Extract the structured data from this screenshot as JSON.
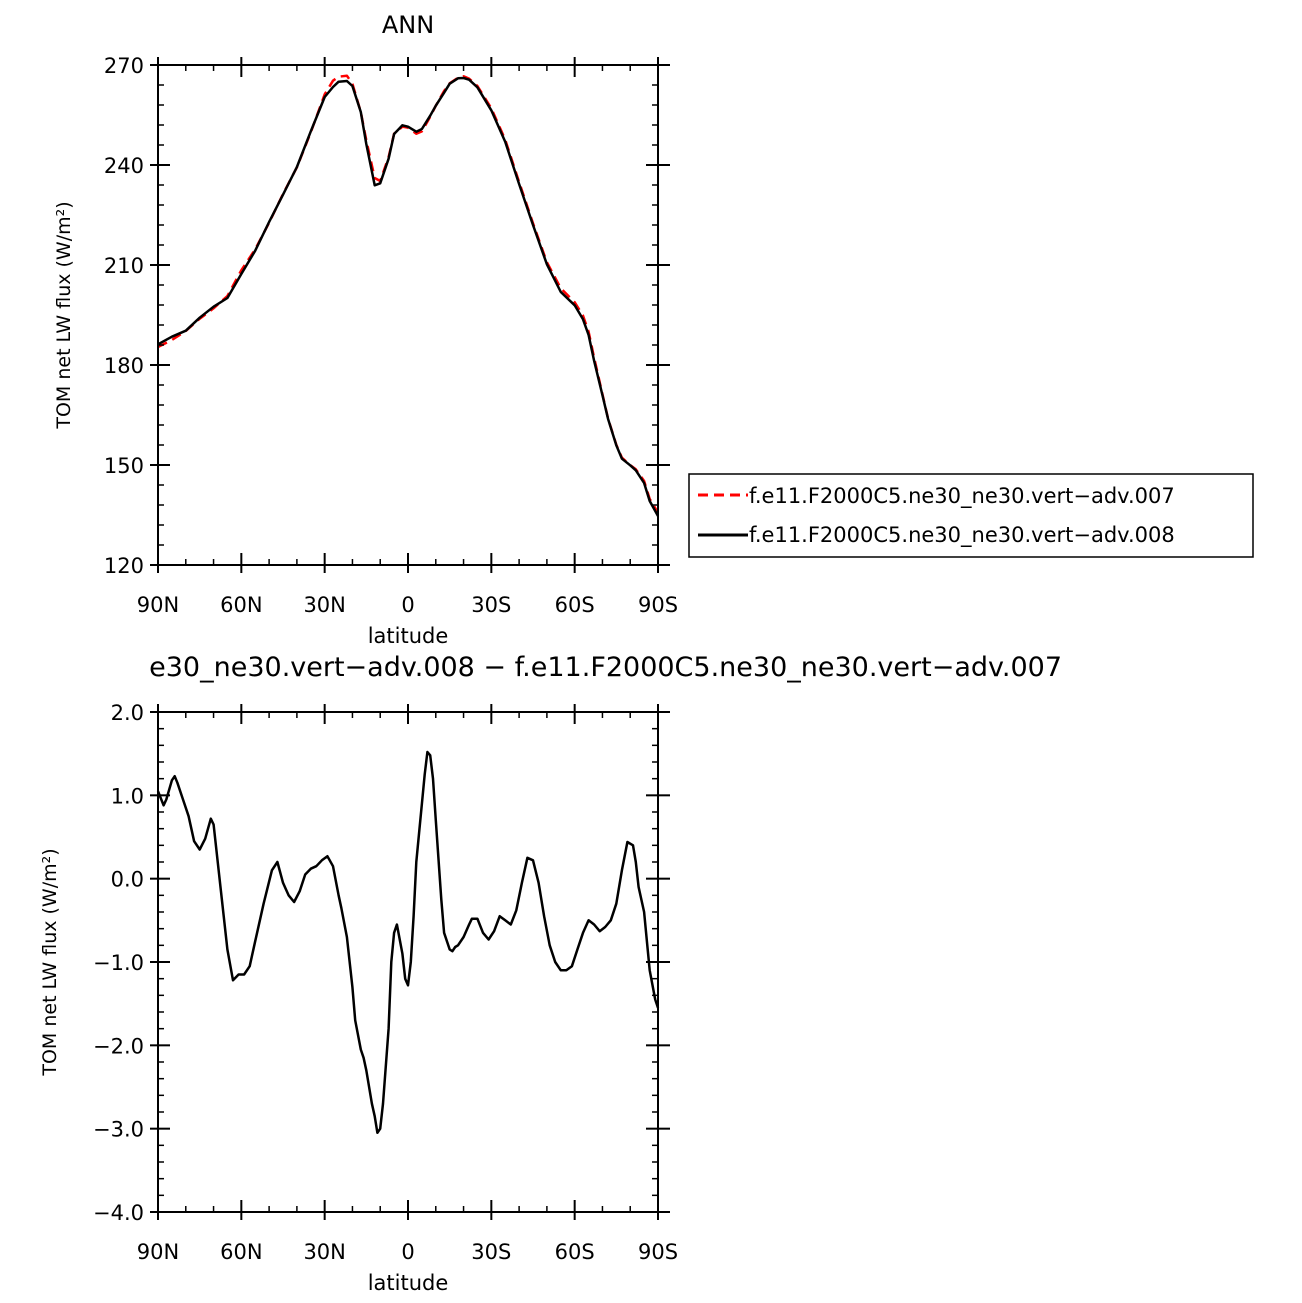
{
  "chart_data": [
    {
      "type": "line",
      "title": "ANN",
      "xlabel": "latitude",
      "ylabel": "TOM net LW flux (W/m²)",
      "xlim": [
        -90,
        90
      ],
      "ylim": [
        120,
        270
      ],
      "x_ticks": [
        {
          "value": -90,
          "label": "90N"
        },
        {
          "value": -60,
          "label": "60N"
        },
        {
          "value": -30,
          "label": "30N"
        },
        {
          "value": 0,
          "label": "0"
        },
        {
          "value": 30,
          "label": "30S"
        },
        {
          "value": 60,
          "label": "60S"
        },
        {
          "value": 90,
          "label": "90S"
        }
      ],
      "y_ticks": [
        {
          "value": 120,
          "label": "120"
        },
        {
          "value": 150,
          "label": "150"
        },
        {
          "value": 180,
          "label": "180"
        },
        {
          "value": 210,
          "label": "210"
        },
        {
          "value": 240,
          "label": "240"
        },
        {
          "value": 270,
          "label": "270"
        }
      ],
      "legend": "right",
      "series": [
        {
          "name": "f.e11.F2000C5.ne30_ne30.vert−adv.007",
          "color": "#ff0000",
          "dash": "dashed",
          "x": [
            -90,
            -85,
            -80,
            -75,
            -70,
            -65,
            -60,
            -55,
            -50,
            -45,
            -40,
            -35,
            -30,
            -27,
            -25,
            -22,
            -20,
            -17,
            -15,
            -12,
            -10,
            -7,
            -5,
            -2,
            0,
            3,
            5,
            8,
            10,
            13,
            15,
            18,
            20,
            22,
            25,
            30,
            35,
            40,
            45,
            50,
            55,
            60,
            63,
            65,
            67,
            70,
            72,
            75,
            77,
            80,
            82,
            85,
            87,
            90
          ],
          "y": [
            185.4,
            187.5,
            190.2,
            193.9,
            197.0,
            200.7,
            208.4,
            214.7,
            222.7,
            231.3,
            239.3,
            249.8,
            261.2,
            265.3,
            266.5,
            266.8,
            264.4,
            255.9,
            247.4,
            236.1,
            235.2,
            242.4,
            249.4,
            251.5,
            251.2,
            249.4,
            250.1,
            254.5,
            257.8,
            262.2,
            264.5,
            266.2,
            266.6,
            265.9,
            263.7,
            257.0,
            247.6,
            234.9,
            222.5,
            210.8,
            203.0,
            198.8,
            194.8,
            190.0,
            182.2,
            171.3,
            164.0,
            156.1,
            152.2,
            150.0,
            148.7,
            145.2,
            139.8,
            135.7
          ]
        },
        {
          "name": "f.e11.F2000C5.ne30_ne30.vert−adv.008",
          "color": "#000000",
          "dash": "solid",
          "x": [
            -90,
            -85,
            -80,
            -75,
            -70,
            -65,
            -60,
            -55,
            -50,
            -45,
            -40,
            -35,
            -30,
            -27,
            -25,
            -22,
            -20,
            -17,
            -15,
            -12,
            -10,
            -7,
            -5,
            -2,
            0,
            3,
            5,
            8,
            10,
            13,
            15,
            18,
            20,
            22,
            25,
            30,
            35,
            40,
            45,
            50,
            55,
            60,
            63,
            65,
            67,
            70,
            72,
            75,
            77,
            80,
            82,
            85,
            87,
            90
          ],
          "y": [
            186.2,
            188.5,
            190.3,
            194.2,
            197.5,
            200.1,
            207.3,
            214.3,
            222.9,
            231.1,
            239.4,
            250.1,
            260.4,
            263.4,
            265.0,
            265.2,
            263.7,
            255.9,
            246.3,
            233.9,
            234.5,
            241.9,
            249.3,
            251.9,
            251.5,
            250.0,
            250.8,
            254.8,
            257.8,
            261.7,
            264.4,
            266.0,
            266.1,
            265.6,
            263.3,
            256.4,
            247.0,
            234.3,
            222.0,
            210.2,
            201.9,
            197.9,
            193.7,
            189.0,
            181.3,
            171.0,
            163.9,
            155.9,
            151.9,
            149.9,
            148.4,
            144.6,
            139.2,
            134.7
          ]
        }
      ]
    },
    {
      "type": "line",
      "title": "e30_ne30.vert−adv.008 − f.e11.F2000C5.ne30_ne30.vert−adv.007",
      "xlabel": "latitude",
      "ylabel": "TOM net LW flux (W/m²)",
      "xlim": [
        -90,
        90
      ],
      "ylim": [
        -4.0,
        2.0
      ],
      "x_ticks": [
        {
          "value": -90,
          "label": "90N"
        },
        {
          "value": -60,
          "label": "60N"
        },
        {
          "value": -30,
          "label": "30N"
        },
        {
          "value": 0,
          "label": "0"
        },
        {
          "value": 30,
          "label": "30S"
        },
        {
          "value": 60,
          "label": "60S"
        },
        {
          "value": 90,
          "label": "90S"
        }
      ],
      "y_ticks": [
        {
          "value": -4.0,
          "label": "−4.0"
        },
        {
          "value": -3.0,
          "label": "−3.0"
        },
        {
          "value": -2.0,
          "label": "−2.0"
        },
        {
          "value": -1.0,
          "label": "−1.0"
        },
        {
          "value": 0.0,
          "label": "0.0"
        },
        {
          "value": 1.0,
          "label": "1.0"
        },
        {
          "value": 2.0,
          "label": "2.0"
        }
      ],
      "series": [
        {
          "color": "#000000",
          "dash": "solid",
          "x": [
            -90,
            -88,
            -87,
            -85,
            -84,
            -83,
            -81,
            -79,
            -77,
            -75,
            -73,
            -71,
            -70,
            -68,
            -65,
            -63,
            -61,
            -59,
            -57,
            -55,
            -52,
            -49,
            -47,
            -45,
            -43,
            -41,
            -39,
            -37,
            -35,
            -33,
            -31,
            -29,
            -27,
            -25,
            -24,
            -22,
            -20,
            -19,
            -17,
            -16,
            -15,
            -13,
            -12,
            -11,
            -10,
            -9,
            -7,
            -6,
            -5,
            -4,
            -2,
            -1,
            0,
            1,
            2,
            3,
            4,
            5,
            6,
            7,
            8,
            9,
            10,
            12,
            13,
            15,
            16,
            17,
            18,
            20,
            22,
            23,
            25,
            27,
            29,
            31,
            33,
            35,
            37,
            39,
            41,
            43,
            45,
            47,
            49,
            51,
            53,
            55,
            57,
            59,
            61,
            63,
            65,
            67,
            69,
            71,
            73,
            75,
            77,
            79,
            81,
            82,
            83,
            85,
            86,
            87,
            89,
            90
          ],
          "y": [
            1.05,
            0.88,
            0.95,
            1.18,
            1.23,
            1.15,
            0.95,
            0.75,
            0.45,
            0.35,
            0.48,
            0.72,
            0.65,
            0.05,
            -0.85,
            -1.22,
            -1.15,
            -1.15,
            -1.05,
            -0.75,
            -0.3,
            0.1,
            0.2,
            -0.05,
            -0.2,
            -0.28,
            -0.15,
            0.05,
            0.12,
            0.15,
            0.22,
            0.27,
            0.15,
            -0.2,
            -0.35,
            -0.7,
            -1.3,
            -1.7,
            -2.05,
            -2.15,
            -2.3,
            -2.7,
            -2.85,
            -3.05,
            -3.0,
            -2.7,
            -1.8,
            -1.0,
            -0.65,
            -0.55,
            -0.9,
            -1.2,
            -1.28,
            -1.0,
            -0.45,
            0.2,
            0.55,
            0.9,
            1.25,
            1.52,
            1.48,
            1.2,
            0.7,
            -0.25,
            -0.65,
            -0.85,
            -0.87,
            -0.82,
            -0.8,
            -0.7,
            -0.55,
            -0.48,
            -0.48,
            -0.65,
            -0.73,
            -0.63,
            -0.45,
            -0.5,
            -0.55,
            -0.38,
            -0.05,
            0.25,
            0.22,
            -0.05,
            -0.45,
            -0.8,
            -1.0,
            -1.1,
            -1.1,
            -1.05,
            -0.85,
            -0.65,
            -0.5,
            -0.55,
            -0.63,
            -0.58,
            -0.5,
            -0.3,
            0.1,
            0.44,
            0.4,
            0.2,
            -0.1,
            -0.4,
            -0.75,
            -1.1,
            -1.45,
            -1.55
          ]
        }
      ]
    }
  ]
}
